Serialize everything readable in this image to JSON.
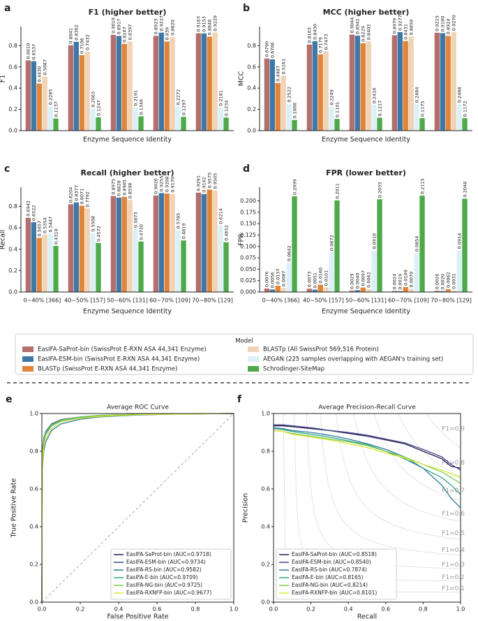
{
  "legend": {
    "title": "Model",
    "items": [
      {
        "name": "EasIFA-SaProt-bin (SwissProt E-RXN ASA 44,341 Enzyme)",
        "color": "#b26f6c"
      },
      {
        "name": "EasIFA-ESM-bin (SwissProt E-RXN ASA 44,341 Enzyme)",
        "color": "#3e78a9"
      },
      {
        "name": "BLASTp (SwissProt E-RXN ASA 44,341 Enzyme)",
        "color": "#e0843b"
      },
      {
        "name": "BLASTp (All SwissProt 569,516 Protein)",
        "color": "#f1d3b5"
      },
      {
        "name": "AEGAN (225 samples overlapping with AEGAN's training set)",
        "color": "#dcf1f7"
      },
      {
        "name": "Schrodinger-SiteMap",
        "color": "#4ea94a"
      }
    ]
  },
  "chart_data": [
    {
      "type": "bar",
      "panel_label": "a",
      "title": "F1 (higher better)",
      "x_label": "Enzyme Sequence Identity",
      "y_label": "F1",
      "ylim": [
        0,
        0.98
      ],
      "yticks": [
        {
          "value": 0,
          "label": "0.0"
        },
        0.2,
        0.4,
        0.6,
        0.8
      ],
      "series": [
        {
          "values": [
            0.661,
            0.8041,
            0.9019,
            0.8923,
            0.9163
          ],
          "value_labels": [
            "0.6610",
            "0.8041",
            "0.9019",
            "0.8923",
            "0.9163"
          ]
        },
        {
          "values": [
            0.6537,
            0.8362,
            0.8917,
            0.9227,
            0.9153
          ],
          "value_labels": [
            "0.6537",
            "0.8362",
            "0.8917",
            "0.9227",
            "0.9153"
          ]
        },
        {
          "values": [
            0.443,
            0.7106,
            0.8167,
            0.839,
            0.8848
          ],
          "value_labels": [
            "0.4430",
            "0.7106",
            "0.8167",
            "0.839",
            "0.8848"
          ]
        },
        {
          "values": [
            0.5087,
            0.7432,
            0.8397,
            0.882,
            0.9229
          ],
          "value_labels": [
            "0.5087",
            "0.7432",
            "0.8397",
            "0.8820",
            "0.9229"
          ]
        },
        {
          "values": [
            0.2285,
            0.2063,
            0.2191,
            0.2272,
            0.2181
          ],
          "value_labels": [
            "0.2285",
            "0.2063",
            "0.2191",
            "0.2272",
            "0.2181"
          ]
        },
        {
          "values": [
            0.1137,
            0.1247,
            0.1346,
            0.1297,
            0.1234
          ],
          "value_labels": [
            "0.1137",
            "0.1247",
            "0.1346",
            "0.1297",
            "0.1234"
          ]
        }
      ]
    },
    {
      "type": "bar",
      "panel_label": "b",
      "title": "MCC (higher better)",
      "x_label": "Enzyme Sequence Identity",
      "y_label": "MCC",
      "ylim": [
        0,
        0.98
      ],
      "yticks": [
        {
          "value": 0,
          "label": "0.0"
        },
        0.2,
        0.4,
        0.6,
        0.8
      ],
      "series": [
        {
          "values": [
            0.679,
            0.8103,
            0.9044,
            0.8979,
            0.9215
          ],
          "value_labels": [
            "0.6790",
            "0.8103",
            "0.9044",
            "0.8979",
            "0.9215"
          ]
        },
        {
          "values": [
            0.6706,
            0.843,
            0.8941,
            0.9277,
            0.918
          ],
          "value_labels": [
            "0.6706",
            "0.8430",
            "0.8941",
            "0.9277",
            "0.9180"
          ]
        },
        {
          "values": [
            0.4487,
            0.7179,
            0.8229,
            0.8431,
            0.8924
          ],
          "value_labels": [
            "0.4487",
            "0.7179",
            "0.8229",
            "0.8431",
            "0.8924"
          ]
        },
        {
          "values": [
            0.5161,
            0.7473,
            0.8402,
            0.885,
            0.927
          ],
          "value_labels": [
            "0.5161",
            "0.7473",
            "0.8402",
            "0.8850",
            "0.9270"
          ]
        },
        {
          "values": [
            0.2522,
            0.2249,
            0.2416,
            0.2484,
            0.2488
          ],
          "value_labels": [
            "0.2522",
            "0.2249",
            "0.2416",
            "0.2484",
            "0.2488"
          ]
        },
        {
          "values": [
            0.1008,
            0.1101,
            0.1217,
            0.1175,
            0.1172
          ],
          "value_labels": [
            "0.1008",
            "0.1101",
            "0.1217",
            "0.1175",
            "0.1172"
          ]
        }
      ]
    },
    {
      "type": "bar",
      "panel_label": "c",
      "title": "Recall (higher better)",
      "x_label": "Enzyme Sequence Identity",
      "y_label": "Recall",
      "categories": [
        "0~40% [366]",
        "40~50% [157]",
        "50~60% [131]",
        "60~70% [109]",
        "70~80% [129]"
      ],
      "ylim": [
        0,
        0.98
      ],
      "yticks": [
        {
          "value": 0,
          "label": "0.0"
        },
        0.2,
        0.4,
        0.6,
        0.8
      ],
      "series": [
        {
          "values": [
            0.6942,
            0.8204,
            0.8975,
            0.9026,
            0.9291
          ],
          "value_labels": [
            "0.6942",
            "0.8204",
            "0.8975",
            "0.9026",
            "0.9291"
          ]
        },
        {
          "values": [
            0.6522,
            0.8377,
            0.8828,
            0.9255,
            0.9162
          ],
          "value_labels": [
            "0.6522",
            "0.8377",
            "0.8828",
            "0.9255",
            "0.9162"
          ]
        },
        {
          "values": [
            0.5057,
            0.8071,
            0.8905,
            0.9208,
            0.9575
          ],
          "value_labels": [
            "0.5057",
            "0.8071",
            "0.8905",
            "0.9208",
            "0.9575"
          ]
        },
        {
          "values": [
            0.5354,
            0.7792,
            0.8598,
            0.917,
            0.9505
          ],
          "value_labels": [
            "0.5354",
            "0.7792",
            "0.8598",
            "0.9170",
            "0.9505"
          ]
        },
        {
          "values": [
            0.5447,
            0.5508,
            0.5873,
            0.5785,
            0.6214
          ],
          "value_labels": [
            "0.5447",
            "0.5508",
            "0.5873",
            "0.5785",
            "0.6214"
          ]
        },
        {
          "values": [
            0.431,
            0.4572,
            0.472,
            0.4819,
            0.4652
          ],
          "value_labels": [
            "0.4310",
            "0.4572",
            "0.4720",
            "0.4819",
            "0.4652"
          ]
        }
      ]
    },
    {
      "type": "bar",
      "panel_label": "d",
      "title": "FPR (lower better)",
      "x_label": "Enzyme Sequence Identity",
      "y_label": "FPR",
      "categories": [
        "0~40% [366]",
        "40~50% [157]",
        "50~60% [131]",
        "60~70% [109]",
        "70~80% [129]"
      ],
      "ylim": [
        0,
        0.23
      ],
      "yticks": [
        {
          "value": 0,
          "label": "0.000"
        },
        0.025,
        {
          "value": 0.05,
          "label": "0.050"
        },
        0.075,
        {
          "value": 0.1,
          "label": "0.100"
        },
        0.125,
        {
          "value": 0.15,
          "label": "0.150"
        },
        0.175,
        {
          "value": 0.2,
          "label": "0.200"
        }
      ],
      "series": [
        {
          "values": [
            0.0076,
            0.0073,
            0.0029,
            0.0024,
            0.0026
          ],
          "value_labels": [
            "0.0076",
            "0.0073",
            "0.0029",
            "0.0024",
            "0.0026"
          ]
        },
        {
          "values": [
            0.0056,
            0.0051,
            0.004,
            0.0019,
            0.002
          ],
          "value_labels": [
            "0.0056",
            "0.0051",
            "0.0040",
            "0.0019",
            "0.0020"
          ]
        },
        {
          "values": [
            0.0137,
            0.016,
            0.0097,
            0.0109,
            0.0062
          ],
          "value_labels": [
            "0.0137",
            "0.0160",
            "0.0097",
            "0.0109",
            "0.0062"
          ]
        },
        {
          "values": [
            0.0087,
            0.0101,
            0.0062,
            0.007,
            0.0031
          ],
          "value_labels": [
            "0.0087",
            "0.0101",
            "0.0062",
            "0.0070",
            "0.0031"
          ]
        },
        {
          "values": [
            0.0642,
            0.0872,
            0.091,
            0.0854,
            0.0914
          ],
          "value_labels": [
            "0.0642",
            "0.0872",
            "0.0910",
            "0.0854",
            "0.0914"
          ]
        },
        {
          "values": [
            0.2099,
            0.2011,
            0.2035,
            0.2115,
            0.2048
          ],
          "value_labels": [
            "0.2099",
            "0.2011",
            "0.2035",
            "0.2115",
            "0.2048"
          ]
        }
      ]
    },
    {
      "type": "line",
      "panel_label": "e",
      "title": "Average ROC Curve",
      "x_label": "False Positive Rate",
      "y_label": "True Positive Rate",
      "xlim": [
        0,
        1
      ],
      "ylim": [
        0,
        1
      ],
      "xticks": [
        {
          "value": 0,
          "label": "0.0"
        },
        0.2,
        0.4,
        0.6,
        0.8,
        {
          "value": 1,
          "label": "1.0"
        }
      ],
      "yticks": [
        {
          "value": 0,
          "label": "0.0"
        },
        0.2,
        0.4,
        0.6,
        0.8,
        {
          "value": 1,
          "label": "1.0"
        }
      ],
      "legend": "lower right",
      "diagonal": true,
      "x": [
        0,
        0.002,
        0.01,
        0.02,
        0.05,
        0.1,
        0.2,
        0.3,
        0.5,
        0.7,
        1
      ],
      "series": [
        {
          "name": "EasIFA-SaProt-bin (AUC=0.9718)",
          "color": "#2d1650",
          "values": [
            0,
            0.78,
            0.86,
            0.9,
            0.94,
            0.965,
            0.98,
            0.988,
            0.995,
            0.998,
            1
          ]
        },
        {
          "name": "EasIFA-ESM-bin (AUC=0.9734)",
          "color": "#3d4a8a",
          "values": [
            0,
            0.8,
            0.87,
            0.905,
            0.945,
            0.968,
            0.982,
            0.99,
            0.996,
            0.998,
            1
          ]
        },
        {
          "name": "EasIFA-RS-bin (AUC=0.9582)",
          "color": "#2f7b9c",
          "values": [
            0,
            0.7,
            0.8,
            0.85,
            0.91,
            0.945,
            0.97,
            0.982,
            0.992,
            0.997,
            1
          ]
        },
        {
          "name": "EasIFA-E-bin  (AUC=0.9709)",
          "color": "#2ea286",
          "values": [
            0,
            0.76,
            0.85,
            0.89,
            0.935,
            0.962,
            0.98,
            0.988,
            0.995,
            0.998,
            1
          ]
        },
        {
          "name": "EasIFA-NG-bin (AUC=0.9725)",
          "color": "#7acb4c",
          "values": [
            0,
            0.78,
            0.86,
            0.9,
            0.94,
            0.965,
            0.982,
            0.99,
            0.996,
            0.998,
            1
          ]
        },
        {
          "name": "EasIFA-RXNFP-bin (AUC=0.9677)",
          "color": "#d9e532",
          "values": [
            0,
            0.72,
            0.82,
            0.87,
            0.92,
            0.955,
            0.975,
            0.985,
            0.994,
            0.997,
            1
          ]
        }
      ]
    },
    {
      "type": "line",
      "panel_label": "f",
      "title": "Average Precision-Recall Curve",
      "x_label": "Recall",
      "y_label": "Precision",
      "xlim": [
        0,
        1
      ],
      "ylim": [
        0,
        1
      ],
      "xticks": [
        {
          "value": 0,
          "label": "0.0"
        },
        0.2,
        0.4,
        0.6,
        0.8,
        {
          "value": 1,
          "label": "1.0"
        }
      ],
      "yticks": [
        {
          "value": 0,
          "label": "0.0"
        },
        0.2,
        0.4,
        0.6,
        0.8,
        {
          "value": 1,
          "label": "1.0"
        }
      ],
      "legend": "lower left",
      "f1_isolines": [
        {
          "value": 0.9,
          "label": "F1=0.9"
        },
        {
          "value": 0.8,
          "label": "F1=0.8"
        },
        {
          "value": 0.7,
          "label": "F1=0.7"
        },
        {
          "value": 0.6,
          "label": "F1=0.6"
        },
        {
          "value": 0.5,
          "label": "F1=0.5"
        },
        {
          "value": 0.4,
          "label": "F1=0.4"
        },
        {
          "value": 0.3,
          "label": "F1=0.3"
        },
        {
          "value": 0.2,
          "label": "F1=0.2"
        },
        {
          "value": 0.1,
          "label": "F1=0.1"
        }
      ],
      "x": [
        0,
        0.05,
        0.1,
        0.2,
        0.3,
        0.4,
        0.5,
        0.6,
        0.7,
        0.8,
        0.9,
        0.95,
        1
      ],
      "series": [
        {
          "name": "EasIFA-SaProt-bin (AUC=0.8518)",
          "color": "#2d1650",
          "values": [
            0.935,
            0.935,
            0.93,
            0.92,
            0.91,
            0.895,
            0.88,
            0.86,
            0.84,
            0.8,
            0.76,
            0.72,
            0.71
          ]
        },
        {
          "name": "EasIFA-ESM-bin (AUC=0.8540)",
          "color": "#3d4a8a",
          "values": [
            0.94,
            0.94,
            0.935,
            0.925,
            0.91,
            0.9,
            0.885,
            0.865,
            0.845,
            0.81,
            0.77,
            0.73,
            0.7
          ]
        },
        {
          "name": "EasIFA-RS-bin (AUC=0.7874)",
          "color": "#2f7b9c",
          "values": [
            0.925,
            0.92,
            0.91,
            0.9,
            0.885,
            0.865,
            0.84,
            0.81,
            0.77,
            0.71,
            0.62,
            0.55,
            0.5
          ]
        },
        {
          "name": "EasIFA-E-bin  (AUC=0.8165)",
          "color": "#2ea286",
          "values": [
            0.92,
            0.915,
            0.905,
            0.89,
            0.875,
            0.855,
            0.835,
            0.8,
            0.76,
            0.71,
            0.66,
            0.62,
            0.57
          ]
        },
        {
          "name": "EasIFA-NG-bin (AUC=0.8214)",
          "color": "#7acb4c",
          "values": [
            0.91,
            0.905,
            0.895,
            0.88,
            0.865,
            0.85,
            0.83,
            0.8,
            0.77,
            0.73,
            0.69,
            0.66,
            0.63
          ]
        },
        {
          "name": "EasIFA-RXNFP-bin (AUC=0.8101)",
          "color": "#d9e532",
          "values": [
            0.91,
            0.905,
            0.89,
            0.875,
            0.86,
            0.84,
            0.82,
            0.79,
            0.765,
            0.73,
            0.7,
            0.68,
            0.66
          ]
        }
      ]
    }
  ]
}
